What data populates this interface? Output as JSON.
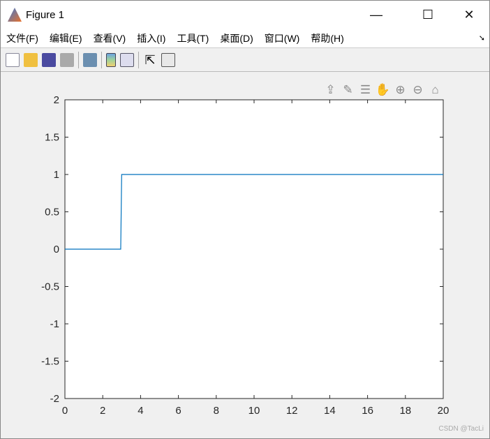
{
  "window": {
    "title": "Figure 1",
    "minimize": "—",
    "maximize": "☐",
    "close": "✕"
  },
  "menus": [
    "文件(F)",
    "编辑(E)",
    "查看(V)",
    "插入(I)",
    "工具(T)",
    "桌面(D)",
    "窗口(W)",
    "帮助(H)"
  ],
  "menu_overflow": "➘",
  "toolbar": [
    "new-figure",
    "open-file",
    "save",
    "print",
    "link-plot",
    "colorbar",
    "legend",
    "edit-pointer",
    "property-inspector"
  ],
  "axes_toolbar": [
    {
      "name": "export",
      "glyph": "⇪"
    },
    {
      "name": "brush",
      "glyph": "✎"
    },
    {
      "name": "data-tips",
      "glyph": "☰"
    },
    {
      "name": "pan",
      "glyph": "✋"
    },
    {
      "name": "zoom-in",
      "glyph": "⊕"
    },
    {
      "name": "zoom-out",
      "glyph": "⊖"
    },
    {
      "name": "home",
      "glyph": "⌂"
    }
  ],
  "watermark": "CSDN @TacLi",
  "chart_data": {
    "type": "line",
    "x": [
      0,
      2.95,
      3,
      20
    ],
    "series": [
      {
        "values": [
          0,
          0,
          1,
          1
        ],
        "color": "#0072bd"
      }
    ],
    "xlim": [
      0,
      20
    ],
    "ylim": [
      -2,
      2
    ],
    "xticks": [
      0,
      2,
      4,
      6,
      8,
      10,
      12,
      14,
      16,
      18,
      20
    ],
    "yticks": [
      -2,
      -1.5,
      -1,
      -0.5,
      0,
      0.5,
      1,
      1.5,
      2
    ],
    "grid": false
  }
}
